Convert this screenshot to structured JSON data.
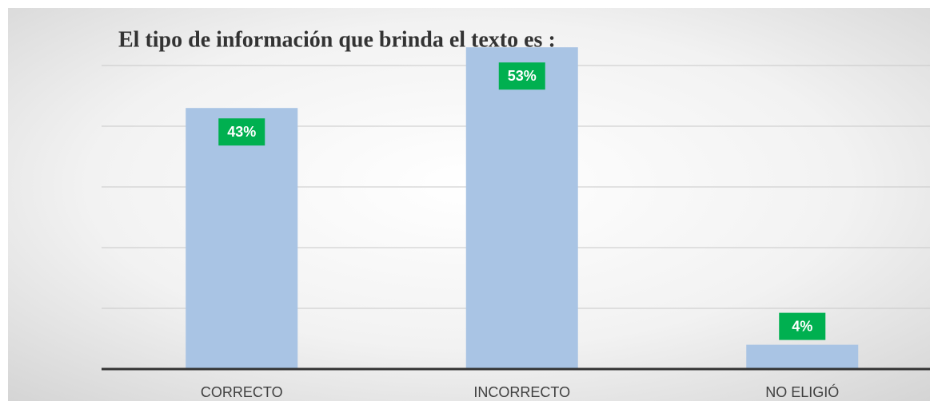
{
  "chart_data": {
    "type": "bar",
    "title": "El tipo de información que brinda el texto es :",
    "categories": [
      "CORRECTO",
      "INCORRECTO",
      "NO ELIGIÓ"
    ],
    "values": [
      43,
      53,
      4
    ],
    "value_labels": [
      "43%",
      "53%",
      "4%"
    ],
    "color": "#a9c4e4",
    "label_color": "#00b050",
    "ylim": [
      0,
      60
    ],
    "yticks": [
      0,
      10,
      20,
      30,
      40,
      50
    ],
    "grid": true
  }
}
